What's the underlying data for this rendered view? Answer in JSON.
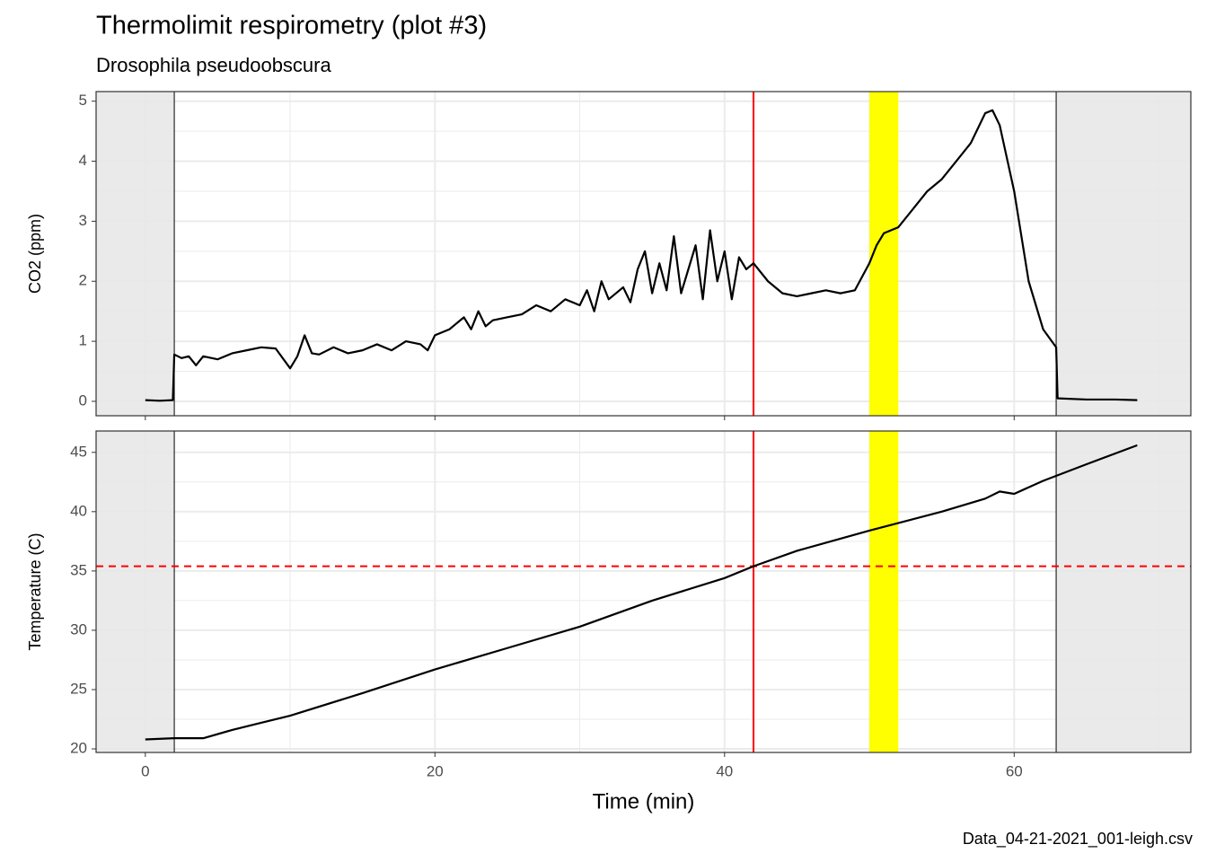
{
  "title": "Thermolimit respirometry (plot #3)",
  "subtitle": "Drosophila pseudoobscura",
  "caption": "Data_04-21-2021_001-leigh.csv",
  "chart_data": [
    {
      "type": "line",
      "y_label": "CO2 (ppm)",
      "color": "#000000",
      "x": [
        0,
        1,
        1.9,
        2.0,
        2.5,
        3,
        3.5,
        4,
        5,
        6,
        7,
        8,
        9,
        10,
        10.5,
        11,
        11.5,
        12,
        13,
        14,
        15,
        16,
        17,
        18,
        19,
        19.5,
        20,
        21,
        22,
        22.5,
        23,
        23.5,
        24,
        25,
        26,
        27,
        28,
        29,
        30,
        30.5,
        31,
        31.5,
        32,
        33,
        33.5,
        34,
        34.5,
        35,
        35.5,
        36,
        36.5,
        37,
        37.5,
        38,
        38.5,
        39,
        39.5,
        40,
        40.5,
        41,
        41.5,
        42,
        43,
        44,
        45,
        46,
        47,
        48,
        49,
        50,
        50.5,
        51,
        52,
        53,
        54,
        55,
        56,
        57,
        58,
        58.5,
        59,
        60,
        61,
        62,
        62.9,
        63,
        65,
        67,
        68.5
      ],
      "values": [
        0.02,
        0.01,
        0.02,
        0.78,
        0.72,
        0.75,
        0.6,
        0.75,
        0.7,
        0.8,
        0.85,
        0.9,
        0.88,
        0.55,
        0.75,
        1.1,
        0.8,
        0.78,
        0.9,
        0.8,
        0.85,
        0.95,
        0.85,
        1.0,
        0.95,
        0.85,
        1.1,
        1.2,
        1.4,
        1.2,
        1.5,
        1.25,
        1.35,
        1.4,
        1.45,
        1.6,
        1.5,
        1.7,
        1.6,
        1.85,
        1.5,
        2.0,
        1.7,
        1.9,
        1.65,
        2.2,
        2.5,
        1.8,
        2.3,
        1.85,
        2.75,
        1.8,
        2.2,
        2.6,
        1.7,
        2.85,
        2.0,
        2.5,
        1.7,
        2.4,
        2.2,
        2.3,
        2.0,
        1.8,
        1.75,
        1.8,
        1.85,
        1.8,
        1.85,
        2.3,
        2.6,
        2.8,
        2.9,
        3.2,
        3.5,
        3.7,
        4.0,
        4.3,
        4.8,
        4.85,
        4.6,
        3.5,
        2.0,
        1.2,
        0.9,
        0.05,
        0.03,
        0.03,
        0.02
      ],
      "xlim": [
        -3.4,
        72.2
      ],
      "xticks": [
        0,
        20,
        40,
        60
      ],
      "x_minor_grid": [
        10,
        30,
        50,
        70
      ],
      "ylim": [
        -0.24,
        5.16
      ],
      "yticks": [
        0,
        1,
        2,
        3,
        4,
        5
      ],
      "y_minor_grid": [
        0.5,
        1.5,
        2.5,
        3.5,
        4.5
      ],
      "grid": true,
      "shaded_x": [
        {
          "from": -3.4,
          "to": 2.0
        },
        {
          "from": 62.9,
          "to": 72.2
        }
      ],
      "shade_color": "#e8e8e8",
      "vlines": [
        {
          "x": 2.0,
          "color": "#000000"
        },
        {
          "x": 62.9,
          "color": "#000000"
        },
        {
          "x": 42.0,
          "color": "#ff0000"
        }
      ],
      "band": {
        "from": 50.0,
        "to": 52.0,
        "color": "#ffff00"
      }
    },
    {
      "type": "line",
      "y_label": "Temperature (C)",
      "x_label": "Time (min)",
      "color": "#000000",
      "x": [
        0,
        2,
        4,
        6,
        8,
        10,
        15,
        20,
        25,
        30,
        35,
        40,
        42,
        45,
        50,
        55,
        58,
        59,
        60,
        62,
        65,
        68.5
      ],
      "values": [
        20.8,
        20.9,
        20.9,
        21.6,
        22.2,
        22.8,
        24.7,
        26.7,
        28.5,
        30.3,
        32.5,
        34.4,
        35.4,
        36.7,
        38.4,
        40.0,
        41.1,
        41.7,
        41.5,
        42.6,
        44.0,
        45.6
      ],
      "xlim": [
        -3.4,
        72.2
      ],
      "xticks": [
        0,
        20,
        40,
        60
      ],
      "x_minor_grid": [
        10,
        30,
        50,
        70
      ],
      "ylim": [
        19.7,
        46.8
      ],
      "yticks": [
        20,
        25,
        30,
        35,
        40,
        45
      ],
      "y_minor_grid": [
        22.5,
        27.5,
        32.5,
        37.5,
        42.5
      ],
      "grid": true,
      "shaded_x": [
        {
          "from": -3.4,
          "to": 2.0
        },
        {
          "from": 62.9,
          "to": 72.2
        }
      ],
      "shade_color": "#e8e8e8",
      "vlines": [
        {
          "x": 2.0,
          "color": "#000000"
        },
        {
          "x": 62.9,
          "color": "#000000"
        },
        {
          "x": 42.0,
          "color": "#ff0000"
        }
      ],
      "band": {
        "from": 50.0,
        "to": 52.0,
        "color": "#ffff00"
      },
      "hline": {
        "y": 35.4,
        "color": "#ff0000",
        "dashed": true
      }
    }
  ]
}
